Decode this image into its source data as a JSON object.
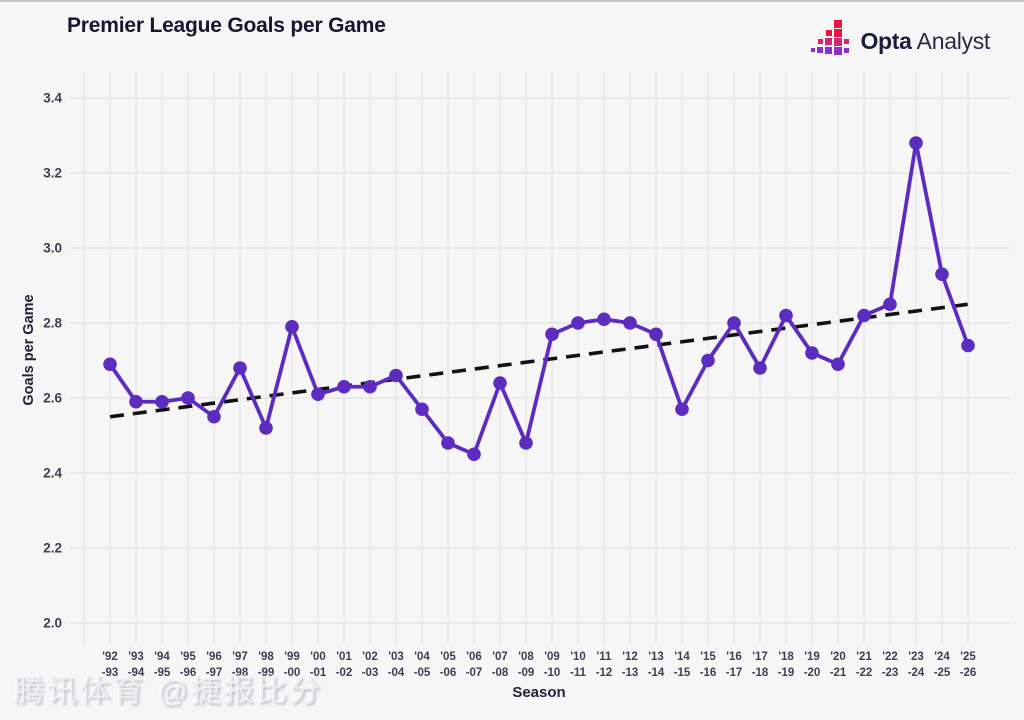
{
  "header": {
    "title": "Premier League Goals per Game",
    "logo": {
      "brand_bold": "Opta",
      "brand_light": "Analyst",
      "icon": "opta-pixel-bars-icon"
    }
  },
  "watermark": "腾讯体育 @捷报比分",
  "colors": {
    "background": "#f6f6f7",
    "title_ink": "#16162e",
    "grid": "#e4e4e7",
    "accent_purple": "#5c2cc0",
    "trend_black": "#111111",
    "brand_red": "#e6173e",
    "brand_magenta": "#d4256f",
    "brand_purple": "#8e2fc7"
  },
  "chart_data": {
    "type": "line",
    "title": "Premier League Goals per Game",
    "xlabel": "Season",
    "ylabel": "Goals per Game",
    "ylim": [
      2.0,
      3.4
    ],
    "yticks": [
      "2.0",
      "2.2",
      "2.4",
      "2.6",
      "2.8",
      "3.0",
      "3.2",
      "3.4"
    ],
    "grid": true,
    "legend": "none",
    "categories": [
      "'92-93",
      "'93-94",
      "'94-95",
      "'95-96",
      "'96-97",
      "'97-98",
      "'98-99",
      "'99-00",
      "'00-01",
      "'01-02",
      "'02-03",
      "'03-04",
      "'04-05",
      "'05-06",
      "'06-07",
      "'07-08",
      "'08-09",
      "'09-10",
      "'10-11",
      "'11-12",
      "'12-13",
      "'13-14",
      "'14-15",
      "'15-16",
      "'16-17",
      "'17-18",
      "'18-19",
      "'19-20",
      "'20-21",
      "'21-22",
      "'22-23",
      "'23-24",
      "'24-25",
      "'25-26"
    ],
    "values": [
      2.69,
      2.59,
      2.59,
      2.6,
      2.55,
      2.68,
      2.52,
      2.79,
      2.61,
      2.63,
      2.63,
      2.66,
      2.57,
      2.48,
      2.45,
      2.64,
      2.48,
      2.77,
      2.8,
      2.81,
      2.8,
      2.77,
      2.57,
      2.7,
      2.8,
      2.68,
      2.82,
      2.72,
      2.69,
      2.82,
      2.85,
      3.28,
      2.93,
      2.74
    ],
    "trendline": {
      "style": "dashed",
      "color": "#111111",
      "start_value": 2.55,
      "end_value": 2.85
    },
    "line_color": "#5c2cc0",
    "marker": "circle"
  }
}
